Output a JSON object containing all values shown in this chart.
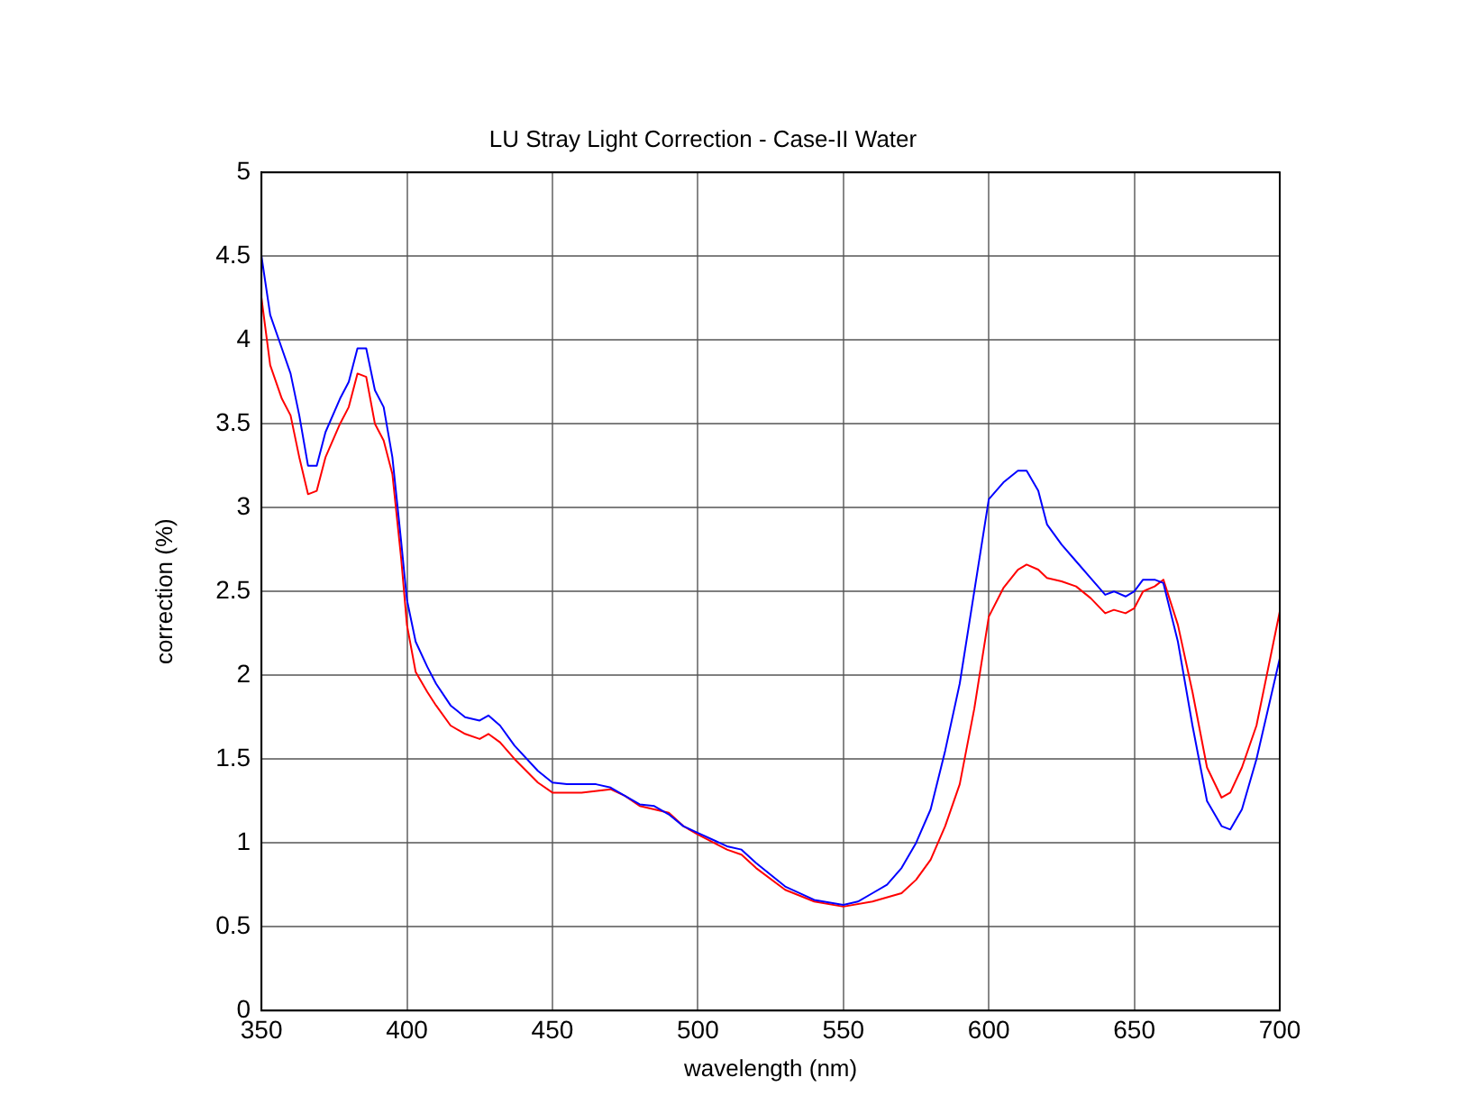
{
  "chart_data": {
    "type": "line",
    "title": "LU Stray Light Correction - Case-II Water",
    "xlabel": "wavelength (nm)",
    "ylabel": "correction (%)",
    "xlim": [
      350,
      700
    ],
    "xticks": [
      350,
      400,
      450,
      500,
      550,
      600,
      650,
      700
    ],
    "ylim": [
      0,
      5
    ],
    "yticks": [
      0,
      0.5,
      1,
      1.5,
      2,
      2.5,
      3,
      3.5,
      4,
      4.5,
      5
    ],
    "grid": true,
    "legend": false,
    "marker": "none",
    "line_style": "solid",
    "series": [
      {
        "color": "#0000ff",
        "x": [
          350,
          353,
          357,
          360,
          363,
          366,
          369,
          372,
          377,
          380,
          383,
          386,
          389,
          392,
          395,
          398,
          400,
          403,
          407,
          410,
          415,
          420,
          425,
          428,
          432,
          437,
          445,
          450,
          455,
          465,
          470,
          475,
          480,
          485,
          490,
          495,
          500,
          505,
          510,
          515,
          520,
          530,
          540,
          550,
          555,
          560,
          565,
          570,
          575,
          580,
          585,
          590,
          595,
          600,
          605,
          610,
          613,
          617,
          620,
          625,
          630,
          635,
          640,
          643,
          647,
          650,
          653,
          657,
          660,
          665,
          670,
          675,
          680,
          683,
          687,
          692,
          700
        ],
        "values": [
          4.5,
          4.15,
          3.95,
          3.8,
          3.55,
          3.25,
          3.25,
          3.45,
          3.65,
          3.75,
          3.95,
          3.95,
          3.7,
          3.6,
          3.3,
          2.8,
          2.45,
          2.2,
          2.05,
          1.95,
          1.82,
          1.75,
          1.73,
          1.76,
          1.7,
          1.58,
          1.43,
          1.36,
          1.35,
          1.35,
          1.33,
          1.28,
          1.23,
          1.22,
          1.17,
          1.1,
          1.06,
          1.02,
          0.98,
          0.96,
          0.88,
          0.74,
          0.66,
          0.63,
          0.65,
          0.7,
          0.75,
          0.85,
          1.0,
          1.2,
          1.55,
          1.95,
          2.5,
          3.05,
          3.15,
          3.22,
          3.22,
          3.1,
          2.9,
          2.78,
          2.68,
          2.58,
          2.48,
          2.5,
          2.47,
          2.5,
          2.57,
          2.57,
          2.55,
          2.2,
          1.7,
          1.25,
          1.1,
          1.08,
          1.2,
          1.5,
          2.1
        ]
      },
      {
        "color": "#ff0000",
        "x": [
          350,
          353,
          357,
          360,
          363,
          366,
          369,
          372,
          377,
          380,
          383,
          386,
          389,
          392,
          395,
          398,
          400,
          403,
          407,
          410,
          415,
          420,
          425,
          428,
          432,
          437,
          445,
          450,
          460,
          470,
          475,
          480,
          490,
          495,
          500,
          510,
          515,
          520,
          530,
          540,
          550,
          560,
          570,
          575,
          580,
          585,
          590,
          595,
          600,
          605,
          610,
          613,
          617,
          620,
          625,
          630,
          635,
          640,
          643,
          647,
          650,
          653,
          657,
          660,
          665,
          670,
          675,
          680,
          683,
          687,
          692,
          700
        ],
        "values": [
          4.25,
          3.85,
          3.65,
          3.55,
          3.3,
          3.08,
          3.1,
          3.3,
          3.5,
          3.6,
          3.8,
          3.78,
          3.5,
          3.4,
          3.2,
          2.7,
          2.3,
          2.02,
          1.9,
          1.82,
          1.7,
          1.65,
          1.62,
          1.65,
          1.6,
          1.5,
          1.36,
          1.3,
          1.3,
          1.32,
          1.28,
          1.22,
          1.18,
          1.1,
          1.05,
          0.96,
          0.93,
          0.85,
          0.72,
          0.65,
          0.62,
          0.65,
          0.7,
          0.78,
          0.9,
          1.1,
          1.35,
          1.8,
          2.35,
          2.52,
          2.63,
          2.66,
          2.63,
          2.58,
          2.56,
          2.53,
          2.46,
          2.37,
          2.39,
          2.37,
          2.4,
          2.5,
          2.53,
          2.57,
          2.3,
          1.9,
          1.45,
          1.27,
          1.3,
          1.45,
          1.7,
          2.38
        ]
      }
    ]
  }
}
